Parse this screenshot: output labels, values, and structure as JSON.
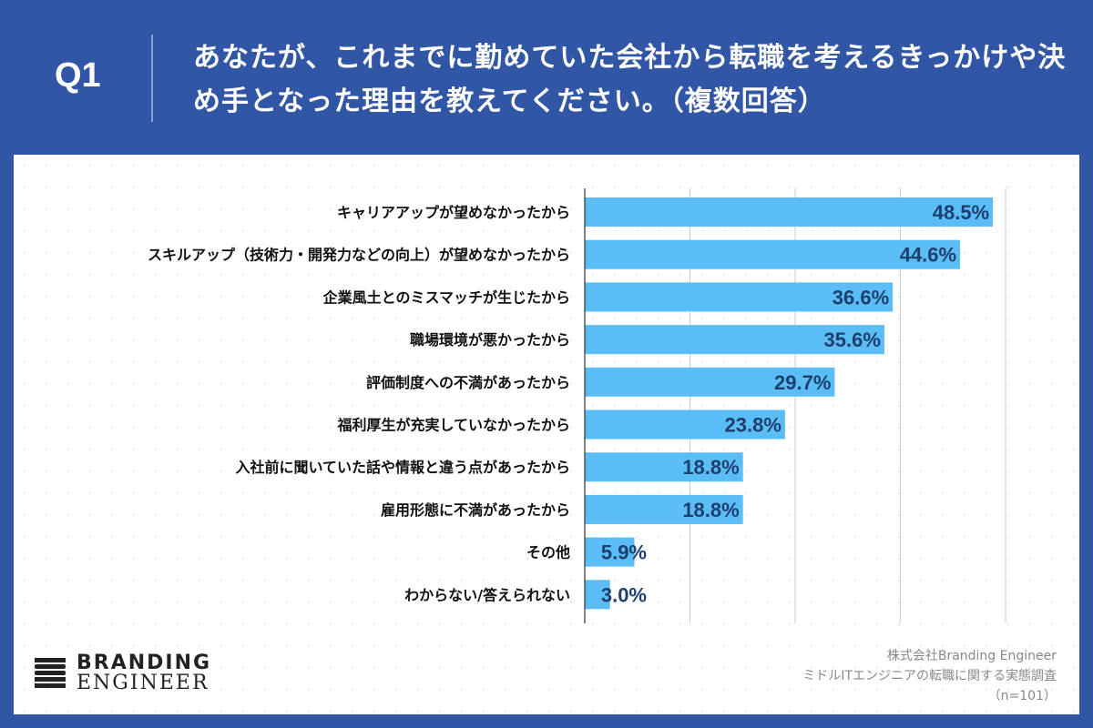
{
  "header": {
    "question_no": "Q1",
    "question": "あなたが、これまでに勤めていた会社から転職を考えるきっかけや決め手となった理由を教えてください。（複数回答）"
  },
  "chart_data": {
    "type": "bar",
    "orientation": "horizontal",
    "categories": [
      "キャリアアップが望めなかったから",
      "スキルアップ（技術力・開発力などの向上）が望めなかったから",
      "企業風土とのミスマッチが生じたから",
      "職場環境が悪かったから",
      "評価制度への不満があったから",
      "福利厚生が充実していなかったから",
      "入社前に聞いていた話や情報と違う点があったから",
      "雇用形態に不満があったから",
      "その他",
      "わからない/答えられない"
    ],
    "values": [
      48.5,
      44.6,
      36.6,
      35.6,
      29.7,
      23.8,
      18.8,
      18.8,
      5.9,
      3.0
    ],
    "labels": [
      "48.5%",
      "44.6%",
      "36.6%",
      "35.6%",
      "29.7%",
      "23.8%",
      "18.8%",
      "18.8%",
      "5.9%",
      "3.0%"
    ],
    "xlim": [
      0,
      55
    ],
    "grid": true,
    "colors": {
      "bar": "#5bbdf6",
      "label": "#1d3f6e",
      "grid": "#cccccc"
    }
  },
  "logo": {
    "line1": "BRANDING",
    "line2": "ENGINEER"
  },
  "source": {
    "line1": "株式会社Branding Engineer",
    "line2": "ミドルITエンジニアの転職に関する実態調査",
    "line3": "（n=101）"
  }
}
